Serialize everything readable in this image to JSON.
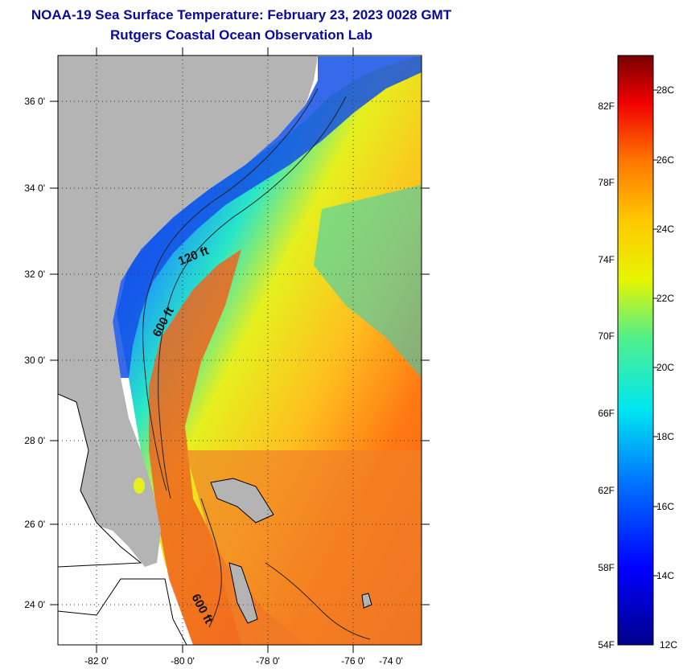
{
  "title": "NOAA-19 Sea Surface Temperature:  February 23, 2023 0028 GMT",
  "subtitle": "Rutgers Coastal Ocean Observation Lab",
  "map": {
    "lat_labels": [
      "36 0'",
      "34 0'",
      "32 0'",
      "30 0'",
      "28 0'",
      "26 0'",
      "24 0'"
    ],
    "lon_labels": [
      "-82 0'",
      "-80 0'",
      "-78 0'",
      "-76 0'",
      "-74 0'"
    ],
    "contour_labels": [
      "120 ft",
      "600 ft",
      "600 ft"
    ]
  },
  "colorbar": {
    "fahrenheit_labels": [
      "82F",
      "78F",
      "74F",
      "70F",
      "66F",
      "62F",
      "58F",
      "54F"
    ],
    "celsius_labels": [
      "28C",
      "26C",
      "24C",
      "22C",
      "20C",
      "18C",
      "16C",
      "14C",
      "12C"
    ]
  },
  "colors": {
    "title": "#0a0a9a",
    "land": "#b4b4b4",
    "cold": "#0000c8",
    "warm": "#f06414"
  }
}
